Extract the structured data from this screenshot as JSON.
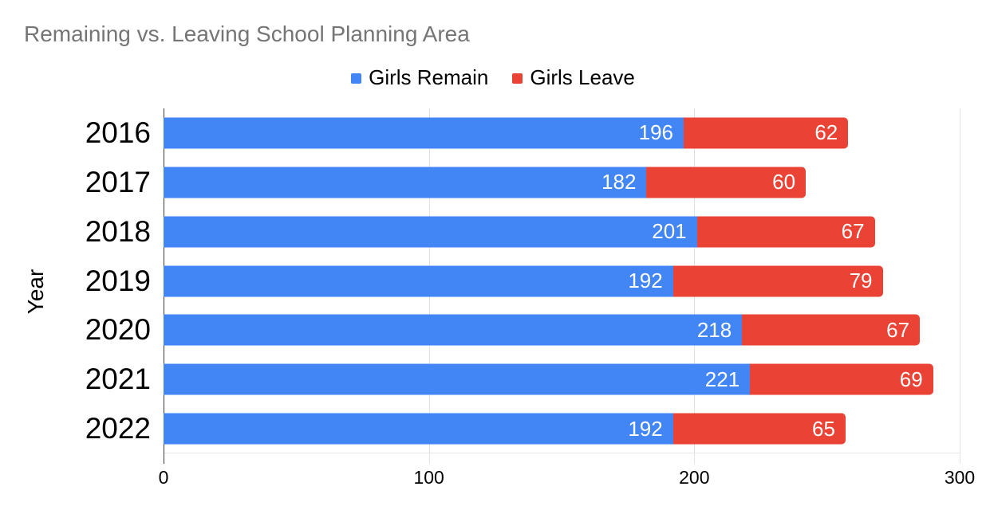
{
  "title": "Remaining vs. Leaving School Planning Area",
  "colors": {
    "remain_blue": "#4285F4",
    "leave_red": "#EA4335",
    "title_text": "#757575",
    "gridline": "#e2e2e2",
    "axis_line": "#3c3c3c",
    "value_label": "#ffffff"
  },
  "legend": [
    {
      "label": "Girls Remain",
      "color": "#4285F4"
    },
    {
      "label": "Girls Leave",
      "color": "#EA4335"
    }
  ],
  "chart_data": {
    "type": "bar",
    "orientation": "horizontal",
    "stacked": true,
    "title": "Remaining vs. Leaving School Planning Area",
    "categories": [
      "2016",
      "2017",
      "2018",
      "2019",
      "2020",
      "2021",
      "2022"
    ],
    "series": [
      {
        "name": "Girls Remain",
        "color": "#4285F4",
        "values": [
          196,
          182,
          201,
          192,
          218,
          221,
          192
        ]
      },
      {
        "name": "Girls Leave",
        "color": "#EA4335",
        "values": [
          62,
          60,
          67,
          79,
          67,
          69,
          65
        ]
      }
    ],
    "xlabel": "",
    "ylabel": "Year",
    "xlim": [
      0,
      300
    ],
    "x_ticks": [
      0,
      100,
      200,
      300
    ],
    "grid": true,
    "legend_position": "top",
    "value_labels": "inside-end"
  }
}
